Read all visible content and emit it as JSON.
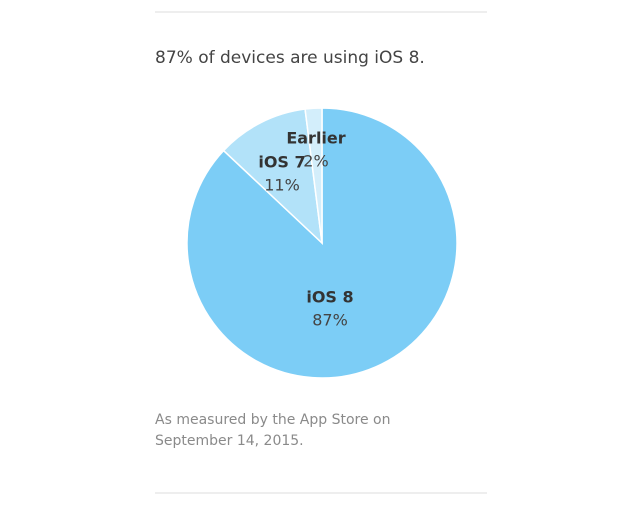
{
  "chart_data": {
    "type": "pie",
    "title": "87% of devices are using iOS 8.",
    "categories": [
      "iOS 8",
      "iOS 7",
      "Earlier"
    ],
    "values": [
      87,
      11,
      2
    ],
    "value_labels": [
      "87%",
      "11%",
      "2%"
    ],
    "colors": [
      "#7ccdf6",
      "#b2e2f9",
      "#d3eefb"
    ],
    "note": [
      "As measured by the App Store on",
      "September 14, 2015."
    ]
  }
}
